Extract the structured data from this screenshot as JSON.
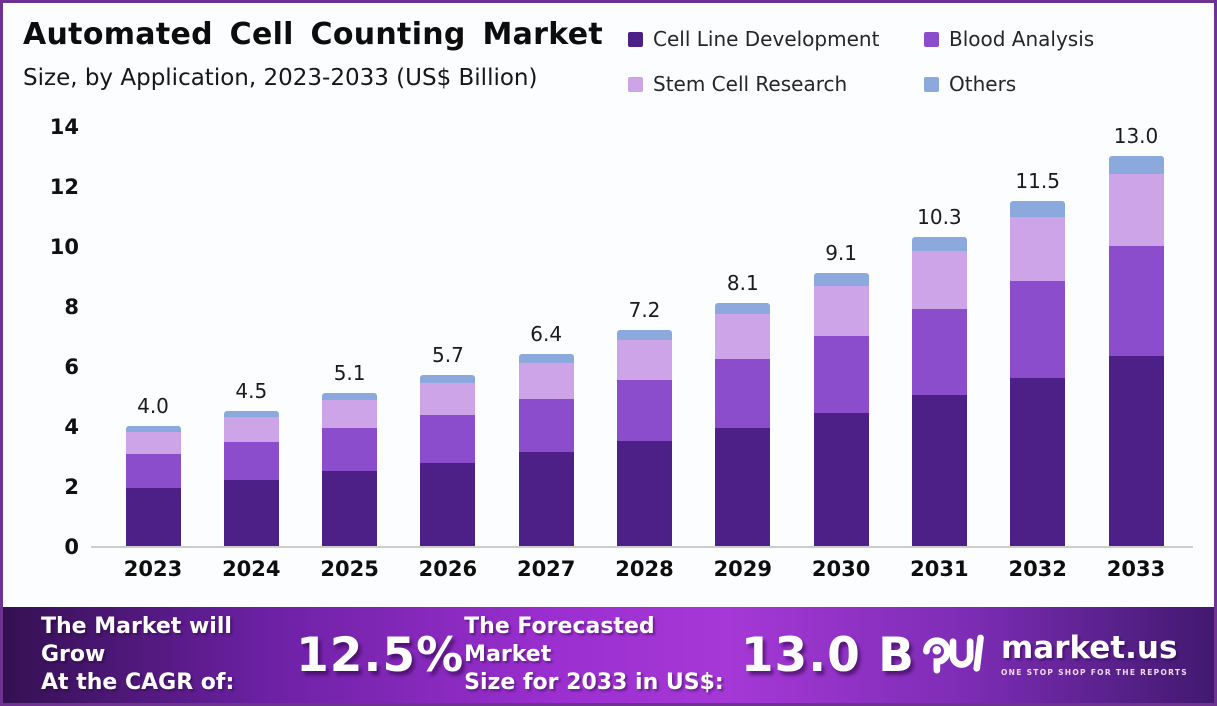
{
  "title": "Automated Cell Counting Market",
  "subtitle": "Size, by Application, 2023-2033 (US$ Billion)",
  "legend": [
    {
      "label": "Cell Line Development",
      "color": "#4c2087"
    },
    {
      "label": "Blood Analysis",
      "color": "#8b4dcb"
    },
    {
      "label": "Stem Cell Research",
      "color": "#cda4e8"
    },
    {
      "label": "Others",
      "color": "#8ba9dc"
    }
  ],
  "chart_data": {
    "type": "bar",
    "stacked": true,
    "title": "Automated Cell Counting Market Size, by Application, 2023-2033 (US$ Billion)",
    "categories": [
      "2023",
      "2024",
      "2025",
      "2026",
      "2027",
      "2028",
      "2029",
      "2030",
      "2031",
      "2032",
      "2033"
    ],
    "series": [
      {
        "name": "Cell Line Development",
        "color": "#4c2087",
        "values": [
          1.95,
          2.2,
          2.49,
          2.78,
          3.12,
          3.51,
          3.95,
          4.44,
          5.03,
          5.61,
          6.35
        ]
      },
      {
        "name": "Blood Analysis",
        "color": "#8b4dcb",
        "values": [
          1.12,
          1.26,
          1.43,
          1.6,
          1.79,
          2.02,
          2.27,
          2.55,
          2.88,
          3.22,
          3.64
        ]
      },
      {
        "name": "Stem Cell Research",
        "color": "#cda4e8",
        "values": [
          0.74,
          0.83,
          0.94,
          1.05,
          1.18,
          1.33,
          1.5,
          1.68,
          1.91,
          2.13,
          2.41
        ]
      },
      {
        "name": "Others",
        "color": "#8ba9dc",
        "values": [
          0.19,
          0.21,
          0.24,
          0.27,
          0.31,
          0.34,
          0.38,
          0.43,
          0.48,
          0.54,
          0.6
        ]
      }
    ],
    "totals": [
      4.0,
      4.5,
      5.1,
      5.7,
      6.4,
      7.2,
      8.1,
      9.1,
      10.3,
      11.5,
      13.0
    ],
    "total_labels": [
      "4.0",
      "4.5",
      "5.1",
      "5.7",
      "6.4",
      "7.2",
      "8.1",
      "9.1",
      "10.3",
      "11.5",
      "13.0"
    ],
    "xlabel": "",
    "ylabel": "",
    "ylim": [
      0,
      14
    ],
    "y_ticks": [
      0,
      2,
      4,
      6,
      8,
      10,
      12,
      14
    ],
    "grid": false,
    "legend_position": "top-right"
  },
  "banner": {
    "cagr_label_line1": "The Market will Grow",
    "cagr_label_line2": "At the CAGR of:",
    "cagr_value": "12.5%",
    "forecast_label_line1": "The Forecasted Market",
    "forecast_label_line2": "Size for 2033 in US$:",
    "forecast_value": "13.0 B",
    "brand": "market.us",
    "brand_tagline": "ONE STOP SHOP FOR THE REPORTS"
  },
  "colors": {
    "page_border": "#6e3390",
    "background": "#fcfdfe",
    "axis_line": "#cdcdcd",
    "banner_gradient_left": "#341052",
    "banner_gradient_center": "#a538d6",
    "banner_gradient_right": "#41196f",
    "text": "#111111"
  }
}
